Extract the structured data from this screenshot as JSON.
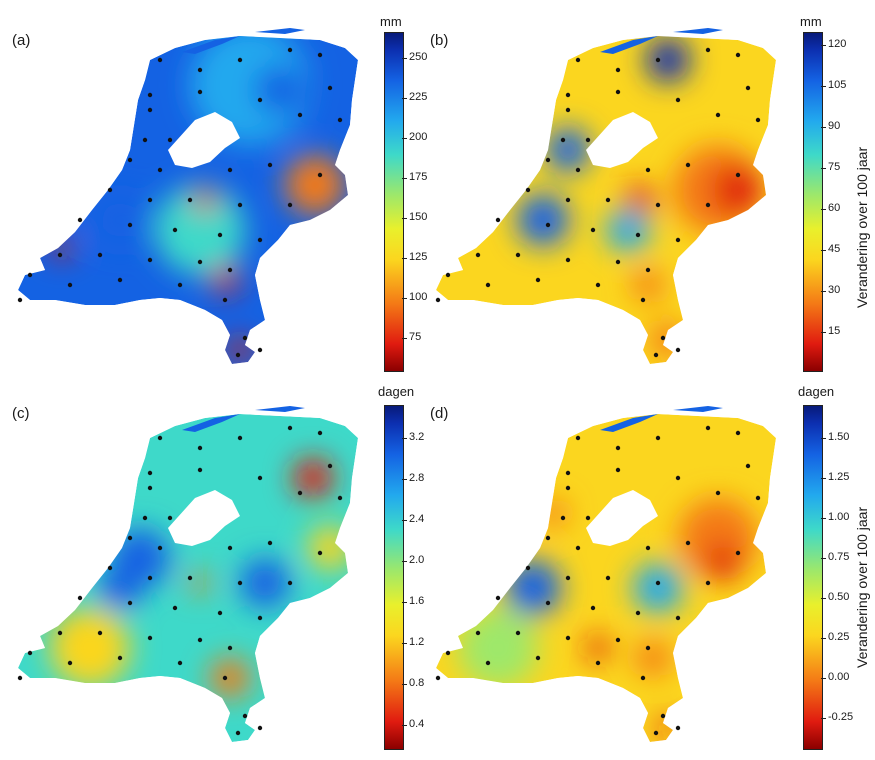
{
  "panels": [
    {
      "label": "(a)",
      "unit": "mm",
      "ticks": [
        "250",
        "225",
        "200",
        "175",
        "150",
        "125",
        "100",
        "75"
      ],
      "theme": "wet"
    },
    {
      "label": "(b)",
      "unit": "mm",
      "ticks": [
        "120",
        "105",
        "90",
        "75",
        "60",
        "45",
        "30",
        "15"
      ],
      "theme": "warm"
    },
    {
      "label": "(c)",
      "unit": "dagen",
      "ticks": [
        "3.2",
        "2.8",
        "2.4",
        "2.0",
        "1.6",
        "1.2",
        "0.8",
        "0.4"
      ],
      "theme": "mixed"
    },
    {
      "label": "(d)",
      "unit": "dagen",
      "ticks": [
        "1.50",
        "1.25",
        "1.00",
        "0.75",
        "0.50",
        "0.25",
        "0.00",
        "-0.25"
      ],
      "theme": "yellow"
    }
  ],
  "axis_label": "Verandering over 100 jaar",
  "colormap": [
    "#8b0000",
    "#e01b10",
    "#f47a16",
    "#fbd61f",
    "#9ee86a",
    "#3ed9c9",
    "#22a9ee",
    "#1462e3",
    "#081a7a"
  ]
}
